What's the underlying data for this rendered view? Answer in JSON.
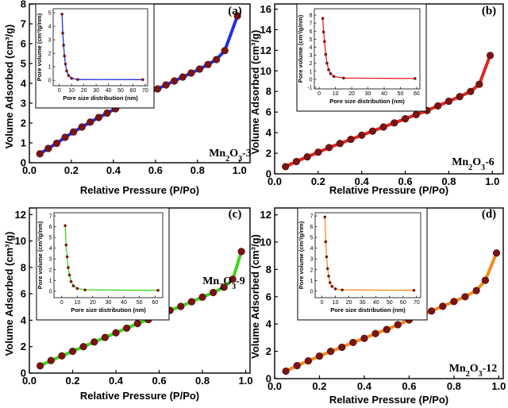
{
  "chart_data": [
    {
      "type": "line",
      "panel_label": "(a)",
      "sample_label": [
        "Mn",
        "2",
        "O",
        "3",
        "-3"
      ],
      "xlabel": "Relative Pressure (P/Po)",
      "ylabel": "Volume Adsorbed (cm³/g)",
      "xlim": [
        0,
        1.05
      ],
      "ylim": [
        0,
        8
      ],
      "xticks": [
        "0.0",
        "0.2",
        "0.4",
        "0.6",
        "0.8",
        "1.0"
      ],
      "yticks": [
        "0",
        "1",
        "2",
        "3",
        "4",
        "5",
        "6",
        "7",
        "8"
      ],
      "line_color": "#1f2fe0",
      "x": [
        0.05,
        0.09,
        0.13,
        0.17,
        0.21,
        0.25,
        0.29,
        0.33,
        0.37,
        0.41,
        0.45,
        0.49,
        0.53,
        0.57,
        0.61,
        0.65,
        0.69,
        0.73,
        0.77,
        0.81,
        0.85,
        0.89,
        0.93,
        0.99
      ],
      "y": [
        0.45,
        0.72,
        0.98,
        1.28,
        1.55,
        1.8,
        2.05,
        2.28,
        2.5,
        2.72,
        2.92,
        3.12,
        3.32,
        3.52,
        3.72,
        3.92,
        4.12,
        4.32,
        4.52,
        4.72,
        4.95,
        5.2,
        5.65,
        7.4
      ],
      "inset": {
        "xlabel": "Pore size distribution (nm)",
        "ylabel": "Pore volume (cm³/g/nm)",
        "xlim": [
          -5,
          72
        ],
        "ylim": [
          -0.4,
          5.3
        ],
        "xticks": [
          "0",
          "10",
          "20",
          "30",
          "40",
          "50",
          "60",
          "70"
        ],
        "yticks": [
          "0",
          "1",
          "2",
          "3",
          "4",
          "5"
        ],
        "line_color": "#1f2fe0",
        "x": [
          2.2,
          2.8,
          3.5,
          4.2,
          5,
          6,
          7.5,
          10,
          15,
          68
        ],
        "y": [
          4.9,
          3.5,
          2.6,
          1.8,
          1.2,
          0.7,
          0.35,
          0.15,
          0.06,
          0.05
        ]
      }
    },
    {
      "type": "line",
      "panel_label": "(b)",
      "sample_label": [
        "Mn",
        "2",
        "O",
        "3",
        "-6"
      ],
      "xlabel": "Relative Pressure (P/Po)",
      "ylabel": "Volume Adsorbed (cm³/g)",
      "xlim": [
        0,
        1.05
      ],
      "ylim": [
        0,
        16.5
      ],
      "xticks": [
        "0.0",
        "0.2",
        "0.4",
        "0.6",
        "0.8",
        "1.0"
      ],
      "yticks": [
        "0",
        "2",
        "4",
        "6",
        "8",
        "10",
        "12",
        "14",
        "16"
      ],
      "line_color": "#e0241f",
      "x": [
        0.05,
        0.1,
        0.15,
        0.2,
        0.25,
        0.3,
        0.35,
        0.4,
        0.45,
        0.5,
        0.55,
        0.6,
        0.65,
        0.7,
        0.75,
        0.8,
        0.85,
        0.9,
        0.94,
        0.99
      ],
      "y": [
        0.7,
        1.2,
        1.65,
        2.1,
        2.55,
        2.95,
        3.35,
        3.75,
        4.15,
        4.55,
        4.95,
        5.35,
        5.75,
        6.15,
        6.6,
        7.05,
        7.5,
        8.0,
        8.7,
        11.5
      ],
      "inset": {
        "xlabel": "Pore size distribution (nm)",
        "ylabel": "Pore volume (cm³/g/nm)",
        "xlim": [
          -3,
          62
        ],
        "ylim": [
          -1.2,
          8.8
        ],
        "xticks": [
          "0",
          "10",
          "20",
          "30",
          "40",
          "50",
          "60"
        ],
        "yticks": [
          "-1",
          "0",
          "1",
          "2",
          "3",
          "4",
          "5",
          "6",
          "7",
          "8"
        ],
        "line_color": "#e0241f",
        "x": [
          2.2,
          2.7,
          3.3,
          4,
          4.8,
          5.8,
          7,
          9,
          15,
          59
        ],
        "y": [
          7.6,
          5.9,
          4.7,
          3.1,
          2.0,
          1.2,
          0.7,
          0.35,
          0.15,
          0.1
        ]
      }
    },
    {
      "type": "line",
      "panel_label": "(c)",
      "sample_label": [
        "Mn",
        "2",
        "O",
        "3",
        "-9"
      ],
      "xlabel": "Relative Pressure (P/Po)",
      "ylabel": "Volume Adsorbed (cm³/g)",
      "xlim": [
        0,
        1.02
      ],
      "ylim": [
        0,
        12.5
      ],
      "xticks": [
        "0.0",
        "0.2",
        "0.4",
        "0.6",
        "0.8",
        "1.0"
      ],
      "yticks": [
        "0",
        "2",
        "4",
        "6",
        "8",
        "10",
        "12"
      ],
      "line_color": "#3fd61e",
      "x": [
        0.05,
        0.1,
        0.15,
        0.2,
        0.25,
        0.3,
        0.35,
        0.4,
        0.45,
        0.5,
        0.55,
        0.6,
        0.65,
        0.7,
        0.75,
        0.8,
        0.85,
        0.9,
        0.94,
        0.98
      ],
      "y": [
        0.55,
        0.95,
        1.3,
        1.65,
        2.0,
        2.35,
        2.7,
        3.05,
        3.4,
        3.75,
        4.05,
        4.4,
        4.75,
        5.05,
        5.4,
        5.75,
        6.1,
        6.5,
        7.1,
        9.2
      ],
      "inset": {
        "xlabel": "Pore size distribution (nm)",
        "ylabel": "Pore volume (cm³/g/nm)",
        "xlim": [
          -5,
          65
        ],
        "ylim": [
          -0.6,
          7.3
        ],
        "xticks": [
          "0",
          "10",
          "20",
          "30",
          "40",
          "50",
          "60"
        ],
        "yticks": [
          "0",
          "1",
          "2",
          "3",
          "4",
          "5",
          "6",
          "7"
        ],
        "line_color": "#3fd61e",
        "x": [
          2.2,
          2.8,
          3.5,
          4.2,
          5,
          6,
          7.5,
          10,
          15,
          62
        ],
        "y": [
          6.1,
          4.3,
          3.2,
          2.2,
          1.5,
          0.9,
          0.5,
          0.25,
          0.12,
          0.08
        ]
      }
    },
    {
      "type": "line",
      "panel_label": "(d)",
      "sample_label": [
        "Mn",
        "2",
        "O",
        "3",
        "-12"
      ],
      "xlabel": "Relative Pressure (P/Po)",
      "ylabel": "Volume Adsorbed (cm³/g)",
      "xlim": [
        0,
        1.02
      ],
      "ylim": [
        0,
        12.5
      ],
      "xticks": [
        "0.0",
        "0.2",
        "0.4",
        "0.6",
        "0.8",
        "1.0"
      ],
      "yticks": [
        "0",
        "2",
        "4",
        "6",
        "8",
        "10",
        "12"
      ],
      "line_color": "#f28c1e",
      "x": [
        0.05,
        0.1,
        0.15,
        0.2,
        0.25,
        0.3,
        0.35,
        0.4,
        0.45,
        0.5,
        0.55,
        0.6,
        0.65,
        0.7,
        0.75,
        0.8,
        0.85,
        0.9,
        0.94,
        0.99
      ],
      "y": [
        0.55,
        0.95,
        1.3,
        1.65,
        2.0,
        2.3,
        2.65,
        2.95,
        3.3,
        3.6,
        3.95,
        4.3,
        4.6,
        4.95,
        5.3,
        5.65,
        6.0,
        6.45,
        7.2,
        9.2
      ],
      "inset": {
        "xlabel": "Pore size distribution (nm)",
        "ylabel": "Pore volume (cm³/g/nm)",
        "xlim": [
          -5,
          73
        ],
        "ylim": [
          -0.6,
          7.3
        ],
        "xticks": [
          "0",
          "10",
          "20",
          "30",
          "40",
          "50",
          "60",
          "70"
        ],
        "yticks": [
          "0",
          "1",
          "2",
          "3",
          "4",
          "5",
          "6",
          "7"
        ],
        "line_color": "#f28c1e",
        "x": [
          2.2,
          2.8,
          3.5,
          4.2,
          5,
          6,
          7.5,
          10,
          15,
          68
        ],
        "y": [
          6.9,
          4.6,
          3.2,
          2.1,
          1.4,
          0.8,
          0.45,
          0.22,
          0.12,
          0.08
        ]
      }
    }
  ]
}
